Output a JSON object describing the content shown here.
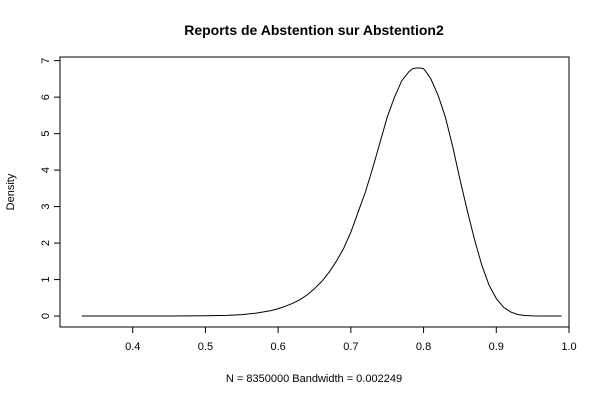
{
  "chart_data": {
    "type": "line",
    "title": "Reports de Abstention sur Abstention2",
    "xlabel": "N = 8350000   Bandwidth = 0.002249",
    "ylabel": "Density",
    "xlim": [
      0.3,
      1.0
    ],
    "ylim": [
      -0.3,
      7.1
    ],
    "x_ticks": [
      0.4,
      0.5,
      0.6,
      0.7,
      0.8,
      0.9,
      1.0
    ],
    "x_tick_labels": [
      "0.4",
      "0.5",
      "0.6",
      "0.7",
      "0.8",
      "0.9",
      "1.0"
    ],
    "y_ticks": [
      0,
      1,
      2,
      3,
      4,
      5,
      6,
      7
    ],
    "y_tick_labels": [
      "0",
      "1",
      "2",
      "3",
      "4",
      "5",
      "6",
      "7"
    ],
    "grid": false,
    "legend": "none",
    "line_color": "#000000",
    "series": [
      {
        "x": [
          0.33,
          0.4,
          0.45,
          0.5,
          0.53,
          0.55,
          0.57,
          0.59,
          0.6,
          0.61,
          0.62,
          0.63,
          0.64,
          0.65,
          0.66,
          0.67,
          0.68,
          0.69,
          0.7,
          0.71,
          0.72,
          0.73,
          0.74,
          0.75,
          0.76,
          0.77,
          0.78,
          0.785,
          0.79,
          0.795,
          0.8,
          0.805,
          0.81,
          0.82,
          0.83,
          0.84,
          0.85,
          0.86,
          0.87,
          0.88,
          0.89,
          0.9,
          0.91,
          0.92,
          0.93,
          0.94,
          0.95,
          0.96,
          0.97,
          0.99
        ],
        "y": [
          0,
          0,
          0,
          0.01,
          0.02,
          0.04,
          0.08,
          0.15,
          0.2,
          0.27,
          0.35,
          0.45,
          0.58,
          0.75,
          0.95,
          1.2,
          1.5,
          1.85,
          2.3,
          2.85,
          3.4,
          4.05,
          4.75,
          5.45,
          6.0,
          6.45,
          6.7,
          6.78,
          6.8,
          6.8,
          6.78,
          6.65,
          6.5,
          6.05,
          5.45,
          4.65,
          3.75,
          2.9,
          2.1,
          1.4,
          0.85,
          0.48,
          0.24,
          0.11,
          0.04,
          0.015,
          0.005,
          0.002,
          0.0,
          0.0
        ]
      }
    ]
  }
}
